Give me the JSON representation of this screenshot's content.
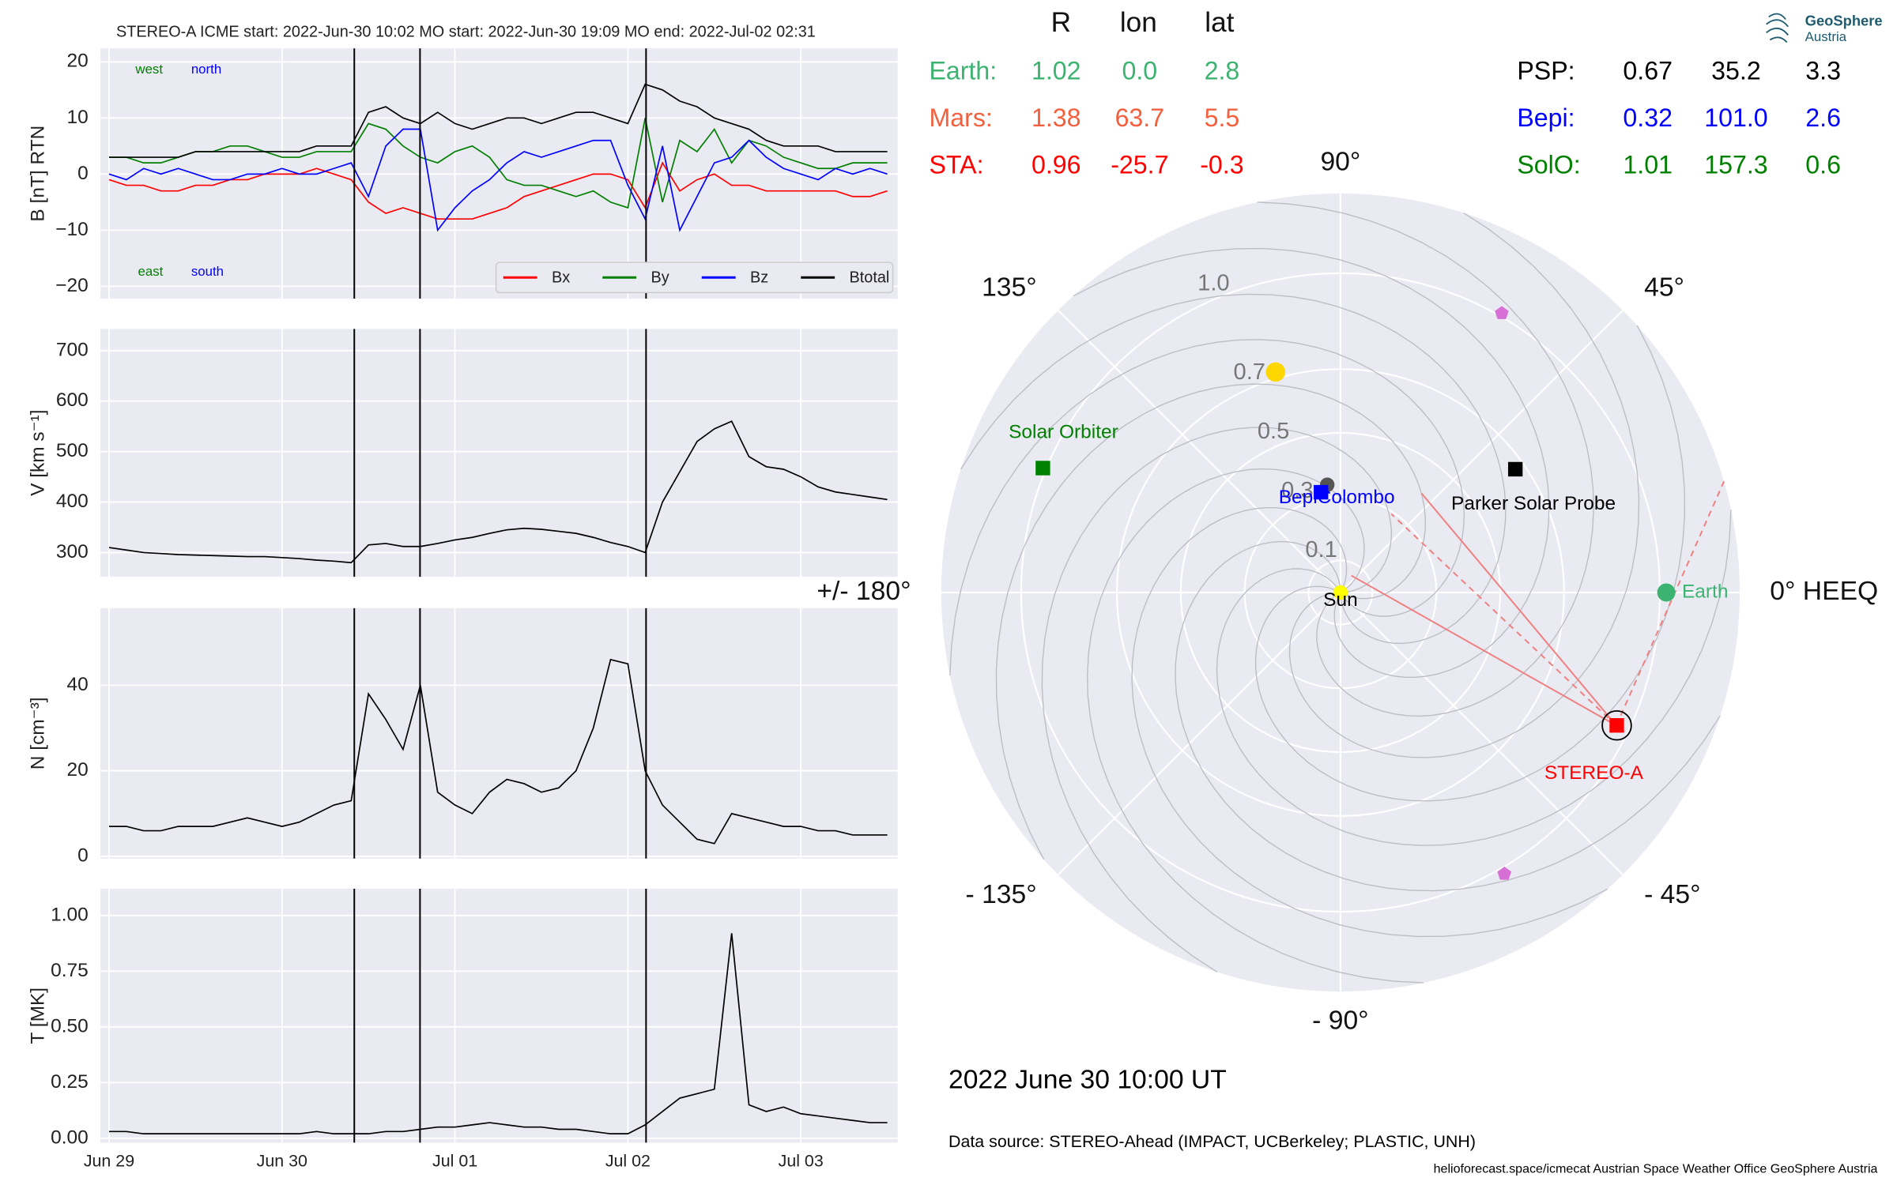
{
  "chart_data": [
    {
      "type": "line",
      "title": "STEREO-A    ICME start: 2022-Jun-30 10:02    MO start: 2022-Jun-30 19:09    MO end: 2022-Jul-02 02:31",
      "ylabel": "B [nT] RTN",
      "x": [
        0,
        0.1,
        0.2,
        0.3,
        0.4,
        0.5,
        0.6,
        0.7,
        0.8,
        0.9,
        1,
        1.1,
        1.2,
        1.3,
        1.4,
        1.5,
        1.6,
        1.7,
        1.8,
        1.9,
        2,
        2.1,
        2.2,
        2.3,
        2.4,
        2.5,
        2.6,
        2.7,
        2.8,
        2.9,
        3,
        3.1,
        3.2,
        3.3,
        3.4,
        3.5,
        3.6,
        3.7,
        3.8,
        3.9,
        4,
        4.1,
        4.2,
        4.3,
        4.4,
        4.5
      ],
      "xlim": [
        -0.05,
        4.56
      ],
      "ylim": [
        -22.2,
        22.4
      ],
      "yticks": [
        {
          "value": -20,
          "label": "−20"
        },
        {
          "value": -10,
          "label": "−10"
        },
        0,
        10,
        20
      ],
      "vlines": [
        1.418,
        1.798,
        3.105
      ],
      "grid": true,
      "legend": "lower right",
      "annotations": [
        {
          "text": "west",
          "color": "#008000"
        },
        {
          "text": "north",
          "color": "#0000ff"
        },
        {
          "text": "east",
          "color": "#008000"
        },
        {
          "text": "south",
          "color": "#0000ff"
        }
      ],
      "series": [
        {
          "name": "Bx",
          "color": "#ff0000",
          "values": [
            -1,
            -2,
            -2,
            -3,
            -3,
            -2,
            -2,
            -1,
            -1,
            0,
            0,
            0,
            1,
            0,
            -1,
            -5,
            -7,
            -6,
            -7,
            -8,
            -8,
            -8,
            -7,
            -6,
            -4,
            -3,
            -2,
            -1,
            0,
            0,
            -1,
            -6,
            2,
            -3,
            -1,
            0,
            -2,
            -2,
            -3,
            -3,
            -3,
            -3,
            -3,
            -4,
            -4,
            -3
          ]
        },
        {
          "name": "By",
          "color": "#008000",
          "values": [
            3,
            3,
            2,
            2,
            3,
            4,
            4,
            5,
            5,
            4,
            3,
            3,
            4,
            4,
            4,
            9,
            8,
            5,
            3,
            2,
            4,
            5,
            3,
            -1,
            -2,
            -2,
            -3,
            -4,
            -3,
            -5,
            -6,
            10,
            -5,
            6,
            4,
            8,
            2,
            6,
            5,
            3,
            2,
            1,
            1,
            2,
            2,
            2
          ]
        },
        {
          "name": "Bz",
          "color": "#0000ff",
          "values": [
            0,
            -1,
            1,
            0,
            1,
            0,
            -1,
            -1,
            0,
            0,
            1,
            0,
            0,
            1,
            2,
            -4,
            5,
            8,
            8,
            -10,
            -6,
            -3,
            -1,
            2,
            4,
            3,
            4,
            5,
            6,
            6,
            -2,
            -8,
            5,
            -10,
            -4,
            2,
            3,
            6,
            3,
            1,
            0,
            -1,
            1,
            0,
            1,
            0
          ]
        },
        {
          "name": "Btotal",
          "color": "#000000",
          "values": [
            3,
            3,
            3,
            3,
            3,
            4,
            4,
            4,
            4,
            4,
            4,
            4,
            5,
            5,
            5,
            11,
            12,
            10,
            9,
            11,
            9,
            8,
            9,
            10,
            10,
            9,
            10,
            11,
            11,
            10,
            9,
            16,
            15,
            13,
            12,
            10,
            9,
            8,
            6,
            5,
            5,
            5,
            4,
            4,
            4,
            4
          ]
        }
      ]
    },
    {
      "type": "line",
      "ylabel": "V [km s⁻¹]",
      "x": [
        0,
        0.1,
        0.2,
        0.3,
        0.4,
        0.5,
        0.6,
        0.7,
        0.8,
        0.9,
        1,
        1.1,
        1.2,
        1.3,
        1.4,
        1.5,
        1.6,
        1.7,
        1.8,
        1.9,
        2,
        2.1,
        2.2,
        2.3,
        2.4,
        2.5,
        2.6,
        2.7,
        2.8,
        2.9,
        3,
        3.1,
        3.2,
        3.3,
        3.4,
        3.5,
        3.6,
        3.7,
        3.8,
        3.9,
        4,
        4.1,
        4.2,
        4.3,
        4.4,
        4.5
      ],
      "xlim": [
        -0.05,
        4.56
      ],
      "ylim": [
        252,
        743
      ],
      "yticks": [
        300,
        400,
        500,
        600,
        700
      ],
      "grid": true,
      "color": "#000000",
      "values": [
        310,
        305,
        300,
        298,
        296,
        295,
        294,
        293,
        292,
        292,
        290,
        288,
        285,
        283,
        280,
        315,
        318,
        312,
        312,
        318,
        325,
        330,
        338,
        345,
        348,
        346,
        342,
        338,
        330,
        320,
        312,
        300,
        400,
        460,
        520,
        545,
        560,
        490,
        470,
        465,
        450,
        430,
        420,
        415,
        410,
        405
      ]
    },
    {
      "type": "line",
      "ylabel": "N [cm⁻³]",
      "x": [
        0,
        0.1,
        0.2,
        0.3,
        0.4,
        0.5,
        0.6,
        0.7,
        0.8,
        0.9,
        1,
        1.1,
        1.2,
        1.3,
        1.4,
        1.5,
        1.6,
        1.7,
        1.8,
        1.9,
        2,
        2.1,
        2.2,
        2.3,
        2.4,
        2.5,
        2.6,
        2.7,
        2.8,
        2.9,
        3,
        3.1,
        3.2,
        3.3,
        3.4,
        3.5,
        3.6,
        3.7,
        3.8,
        3.9,
        4,
        4.1,
        4.2,
        4.3,
        4.4,
        4.5
      ],
      "xlim": [
        -0.05,
        4.56
      ],
      "ylim": [
        -0.5,
        58
      ],
      "yticks": [
        0,
        20,
        40
      ],
      "grid": true,
      "color": "#000000",
      "values": [
        7,
        7,
        6,
        6,
        7,
        7,
        7,
        8,
        9,
        8,
        7,
        8,
        10,
        12,
        13,
        38,
        32,
        25,
        40,
        15,
        12,
        10,
        15,
        18,
        17,
        15,
        16,
        20,
        30,
        46,
        45,
        20,
        12,
        8,
        4,
        3,
        10,
        9,
        8,
        7,
        7,
        6,
        6,
        5,
        5,
        5
      ]
    },
    {
      "type": "line",
      "ylabel": "T [MK]",
      "x": [
        0,
        0.1,
        0.2,
        0.3,
        0.4,
        0.5,
        0.6,
        0.7,
        0.8,
        0.9,
        1,
        1.1,
        1.2,
        1.3,
        1.4,
        1.5,
        1.6,
        1.7,
        1.8,
        1.9,
        2,
        2.1,
        2.2,
        2.3,
        2.4,
        2.5,
        2.6,
        2.7,
        2.8,
        2.9,
        3,
        3.1,
        3.2,
        3.3,
        3.4,
        3.5,
        3.6,
        3.7,
        3.8,
        3.9,
        4,
        4.1,
        4.2,
        4.3,
        4.4,
        4.5
      ],
      "xlim": [
        -0.05,
        4.56
      ],
      "ylim": [
        -0.02,
        1.12
      ],
      "xticks": [
        {
          "value": 0,
          "label": "Jun 29"
        },
        {
          "value": 1,
          "label": "Jun 30"
        },
        {
          "value": 2,
          "label": "Jul 01"
        },
        {
          "value": 3,
          "label": "Jul 02"
        },
        {
          "value": 4,
          "label": "Jul 03"
        }
      ],
      "yticks": [
        {
          "value": 0,
          "label": "0.00"
        },
        {
          "value": 0.25,
          "label": "0.25"
        },
        {
          "value": 0.5,
          "label": "0.50"
        },
        {
          "value": 0.75,
          "label": "0.75"
        },
        {
          "value": 1,
          "label": "1.00"
        }
      ],
      "grid": true,
      "color": "#000000",
      "values": [
        0.03,
        0.03,
        0.02,
        0.02,
        0.02,
        0.02,
        0.02,
        0.02,
        0.02,
        0.02,
        0.02,
        0.02,
        0.03,
        0.02,
        0.02,
        0.02,
        0.03,
        0.03,
        0.04,
        0.05,
        0.05,
        0.06,
        0.07,
        0.06,
        0.05,
        0.05,
        0.04,
        0.04,
        0.03,
        0.02,
        0.02,
        0.06,
        0.12,
        0.18,
        0.2,
        0.22,
        0.92,
        0.15,
        0.12,
        0.14,
        0.11,
        0.1,
        0.09,
        0.08,
        0.07,
        0.07
      ]
    },
    {
      "type": "polar",
      "rlim": [
        0,
        1.25
      ],
      "rticks": [
        0.1,
        0.3,
        0.5,
        0.7,
        {
          "value": 1,
          "label": "1.0"
        }
      ],
      "thetaticks": [
        {
          "value": 0,
          "label": "0° HEEQ"
        },
        {
          "value": 45,
          "label": "45°"
        },
        {
          "value": 90,
          "label": "90°"
        },
        {
          "value": 135,
          "label": "135°"
        },
        {
          "value": 180,
          "label": "+/- 180°"
        },
        {
          "value": -135,
          "label": "- 135°"
        },
        {
          "value": -90,
          "label": "- 90°"
        },
        {
          "value": -45,
          "label": "- 45°"
        }
      ],
      "markers": [
        {
          "r": 0.72,
          "lon": 106.4,
          "color": "#ffd700",
          "marker": "circle"
        },
        {
          "r": 0.34,
          "lon": 97,
          "color": "#555555",
          "marker": "circle"
        },
        {
          "r": 1.01,
          "lon": 60,
          "color": "#d670d6",
          "marker": "pentagon"
        },
        {
          "r": 1.02,
          "lon": -59.8,
          "color": "#d670d6",
          "marker": "pentagon"
        }
      ],
      "objects": [
        {
          "name": "Sun",
          "r": 0,
          "lon": 0,
          "color": "#ffff00",
          "label_color": "#000000",
          "marker": "circle"
        },
        {
          "name": "Earth",
          "r": 1.02,
          "lon": 0,
          "color": "#3cb371",
          "label_color": "#3cb371",
          "marker": "circle"
        },
        {
          "name": "STEREO-A",
          "r": 0.96,
          "lon": -25.7,
          "color": "#ff0000",
          "label_color": "#ff0000",
          "marker": "square"
        },
        {
          "name": "Parker Solar Probe",
          "r": 0.67,
          "lon": 35.2,
          "color": "#000000",
          "label_color": "#000000",
          "marker": "square"
        },
        {
          "name": "BepiColombo",
          "r": 0.32,
          "lon": 101,
          "color": "#0000ff",
          "label_color": "#0000ff",
          "marker": "square"
        },
        {
          "name": "Solar Orbiter",
          "r": 1.01,
          "lon": 157.3,
          "color": "#008000",
          "label_color": "#008000",
          "marker": "square"
        }
      ]
    }
  ],
  "positions": {
    "header": [
      "R",
      "lon",
      "lat"
    ],
    "left": [
      {
        "name": "Earth:",
        "color": "#3cb371",
        "values": [
          "1.02",
          "0.0",
          "2.8"
        ]
      },
      {
        "name": "Mars:",
        "color": "#f4603e",
        "values": [
          "1.38",
          "63.7",
          "5.5"
        ]
      },
      {
        "name": "STA:",
        "color": "#ff0000",
        "values": [
          "0.96",
          "-25.7",
          "-0.3"
        ]
      }
    ],
    "right": [
      {
        "name": "PSP:",
        "color": "#000000",
        "values": [
          "0.67",
          "35.2",
          "3.3"
        ]
      },
      {
        "name": "Bepi:",
        "color": "#0000ff",
        "values": [
          "0.32",
          "101.0",
          "2.6"
        ]
      },
      {
        "name": "SolO:",
        "color": "#008000",
        "values": [
          "1.01",
          "157.3",
          "0.6"
        ]
      }
    ]
  },
  "date": "2022 June 30  10:00 UT",
  "source": "Data source: STEREO-Ahead (IMPACT, UCBerkeley; PLASTIC, UNH)",
  "footer": "helioforecast.space/icmecat   Austrian Space Weather Office   GeoSphere Austria",
  "logo": {
    "name": "GeoSphere",
    "sub": "Austria"
  }
}
